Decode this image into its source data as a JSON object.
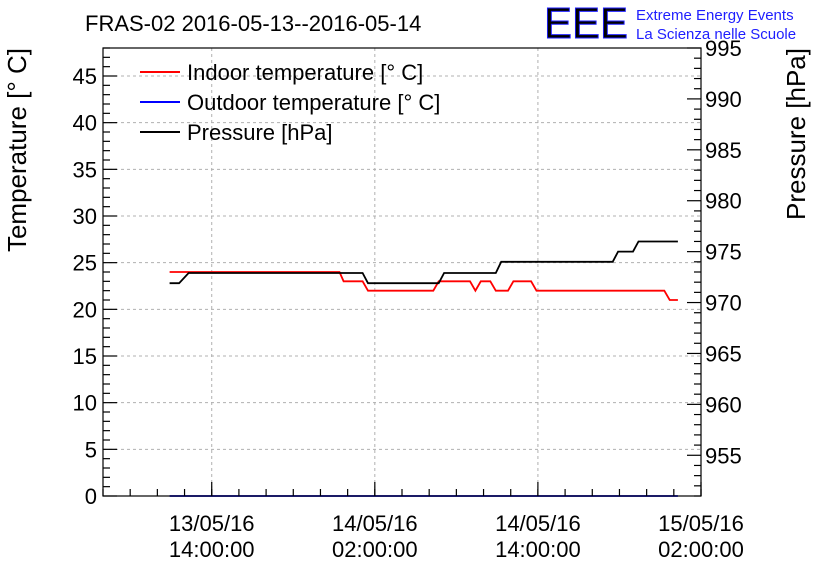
{
  "chart_data": {
    "type": "line",
    "title": "FRAS-02 2016-05-13--2016-05-14",
    "ylabel": "Temperature [° C]",
    "y2label": "Pressure [hPa]",
    "xlabel": "",
    "ylim": [
      0,
      48
    ],
    "y2lim": [
      951,
      995
    ],
    "xlim": [
      "2016-05-13 06:00:00",
      "2016-05-15 02:00:00"
    ],
    "grid": true,
    "legend_position": "top-left",
    "yticks": [
      0,
      5,
      10,
      15,
      20,
      25,
      30,
      35,
      40,
      45
    ],
    "y2ticks": [
      955,
      960,
      965,
      970,
      975,
      980,
      985,
      990,
      995
    ],
    "xticks": [
      {
        "x": "2016-05-13 14:00:00",
        "date": "13/05/16",
        "time": "14:00:00"
      },
      {
        "x": "2016-05-14 02:00:00",
        "date": "14/05/16",
        "time": "02:00:00"
      },
      {
        "x": "2016-05-14 14:00:00",
        "date": "14/05/16",
        "time": "14:00:00"
      },
      {
        "x": "2016-05-15 02:00:00",
        "date": "15/05/16",
        "time": "02:00:00"
      }
    ],
    "series": [
      {
        "name": "Indoor temperature [° C]",
        "color": "#ff0000",
        "axis": "left",
        "points": [
          [
            "2016-05-13 10:54:00",
            24
          ],
          [
            "2016-05-13 23:24:00",
            24
          ],
          [
            "2016-05-13 23:42:00",
            23
          ],
          [
            "2016-05-14 01:06:00",
            23
          ],
          [
            "2016-05-14 01:30:00",
            22
          ],
          [
            "2016-05-14 06:18:00",
            22
          ],
          [
            "2016-05-14 06:42:00",
            23
          ],
          [
            "2016-05-14 09:00:00",
            23
          ],
          [
            "2016-05-14 09:24:00",
            22
          ],
          [
            "2016-05-14 09:48:00",
            23
          ],
          [
            "2016-05-14 10:30:00",
            23
          ],
          [
            "2016-05-14 10:54:00",
            22
          ],
          [
            "2016-05-14 11:48:00",
            22
          ],
          [
            "2016-05-14 12:12:00",
            23
          ],
          [
            "2016-05-14 13:30:00",
            23
          ],
          [
            "2016-05-14 13:54:00",
            22
          ],
          [
            "2016-05-14 23:18:00",
            22
          ],
          [
            "2016-05-14 23:42:00",
            21
          ],
          [
            "2016-05-15 00:18:00",
            21
          ]
        ]
      },
      {
        "name": "Outdoor temperature [° C]",
        "color": "#0000ff",
        "axis": "left",
        "points": [
          [
            "2016-05-13 10:54:00",
            0
          ],
          [
            "2016-05-15 00:18:00",
            0
          ]
        ]
      },
      {
        "name": "Pressure [hPa]",
        "color": "#000000",
        "axis": "right",
        "points": [
          [
            "2016-05-13 10:54:00",
            971.9
          ],
          [
            "2016-05-13 11:36:00",
            971.9
          ],
          [
            "2016-05-13 12:18:00",
            972.9
          ],
          [
            "2016-05-14 01:06:00",
            972.9
          ],
          [
            "2016-05-14 01:30:00",
            971.9
          ],
          [
            "2016-05-14 06:42:00",
            971.9
          ],
          [
            "2016-05-14 07:06:00",
            972.9
          ],
          [
            "2016-05-14 10:54:00",
            972.9
          ],
          [
            "2016-05-14 11:18:00",
            974.0
          ],
          [
            "2016-05-14 19:30:00",
            974.0
          ],
          [
            "2016-05-14 19:54:00",
            975.0
          ],
          [
            "2016-05-14 21:00:00",
            975.0
          ],
          [
            "2016-05-14 21:24:00",
            976.0
          ],
          [
            "2016-05-15 00:18:00",
            976.0
          ]
        ]
      }
    ]
  },
  "logo": {
    "mark": "EEE",
    "line1": "Extreme Energy Events",
    "line2": "La Scienza nelle Scuole"
  }
}
